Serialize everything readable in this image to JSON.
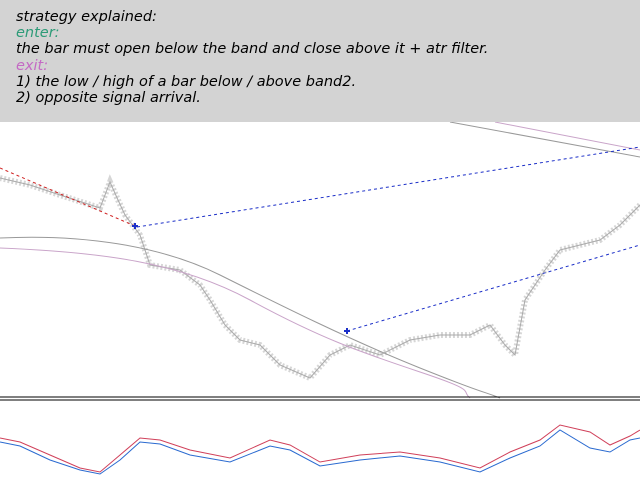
{
  "panel": {
    "heading": "strategy explained:",
    "enter_label": "enter:",
    "enter_rule": "the bar must open below the band and close above it + atr filter.",
    "exit_label": "exit:",
    "exit_rules": [
      "1) the low / high of a bar below / above band2.",
      "2) opposite signal arrival."
    ]
  }
}
